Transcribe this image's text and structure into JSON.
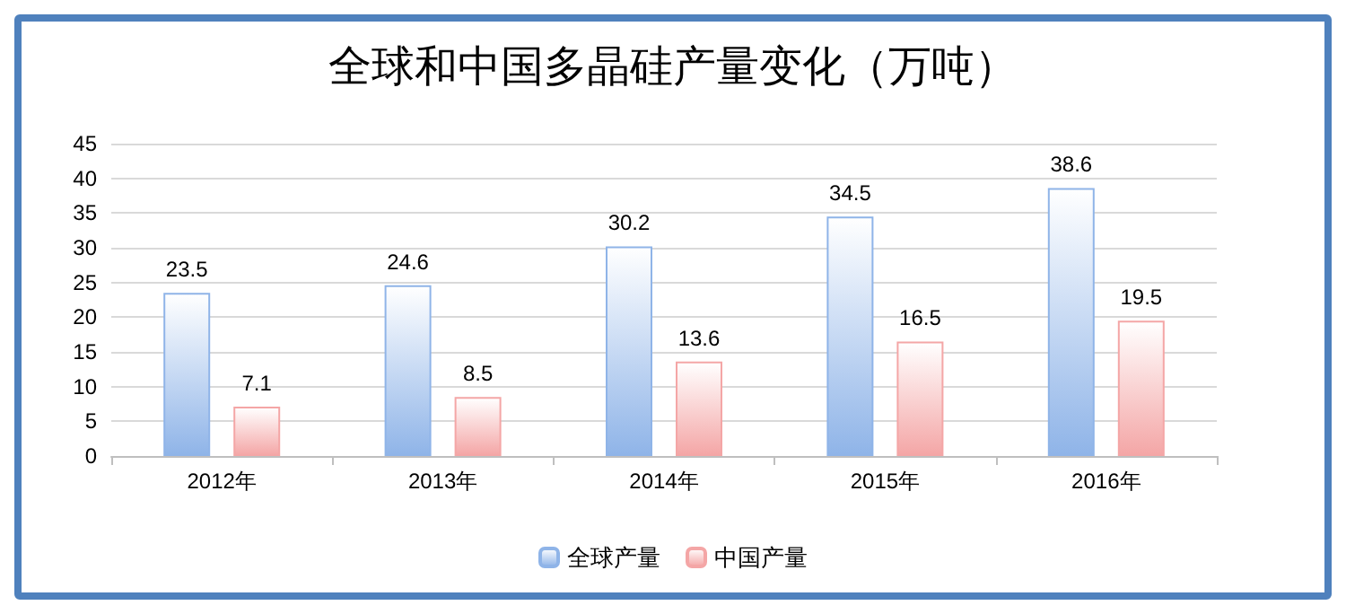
{
  "chart_data": {
    "type": "bar",
    "title": "全球和中国多晶硅产量变化（万吨）",
    "categories": [
      "2012年",
      "2013年",
      "2014年",
      "2015年",
      "2016年"
    ],
    "series": [
      {
        "name": "全球产量",
        "color": "#8fb4e8",
        "values": [
          23.5,
          24.6,
          30.2,
          34.5,
          38.6
        ]
      },
      {
        "name": "中国产量",
        "color": "#f4a6a6",
        "values": [
          7.1,
          8.5,
          13.6,
          16.5,
          19.5
        ]
      }
    ],
    "ylim": [
      0,
      45
    ],
    "yticks": [
      0,
      5,
      10,
      15,
      20,
      25,
      30,
      35,
      40,
      45
    ],
    "grid": "y",
    "legend": "bottom",
    "data_labels": true
  }
}
